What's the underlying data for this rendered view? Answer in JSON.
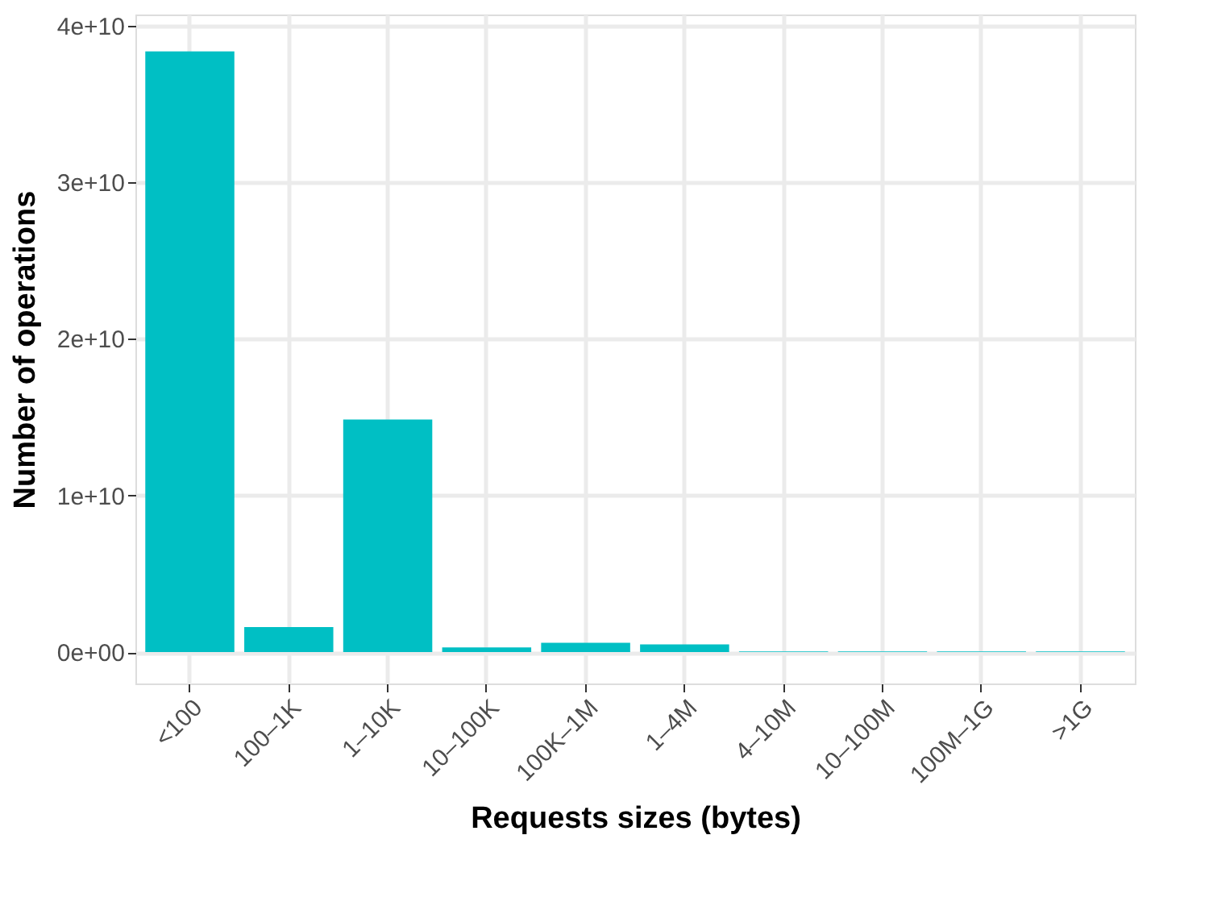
{
  "chart_data": {
    "type": "bar",
    "xlabel": "Requests sizes (bytes)",
    "ylabel": "Number of operations",
    "categories": [
      "<100",
      "100–1K",
      "1–10K",
      "10–100K",
      "100K–1M",
      "1–4M",
      "4–10M",
      "10–100M",
      "100M–1G",
      ">1G"
    ],
    "values": [
      38350000000,
      1600000000,
      14850000000,
      300000000,
      600000000,
      500000000,
      50000000,
      50000000,
      50000000,
      50000000
    ],
    "color": "#00bfc4",
    "ylim": [
      -2000000000,
      40700000000
    ],
    "yticks": [
      {
        "value": 0,
        "label": "0e+00"
      },
      {
        "value": 10000000000,
        "label": "1e+10"
      },
      {
        "value": 20000000000,
        "label": "2e+10"
      },
      {
        "value": 30000000000,
        "label": "3e+10"
      },
      {
        "value": 40000000000,
        "label": "4e+10"
      }
    ],
    "grid": true
  }
}
